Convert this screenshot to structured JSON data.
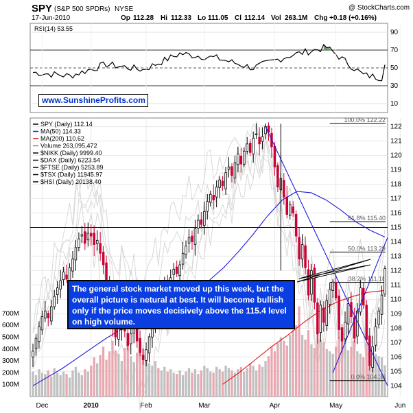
{
  "header": {
    "symbol": "SPY",
    "name": "(S&P 500 SPDRs)",
    "exchange": "NYSE",
    "watermark": "@ StockCharts.com",
    "date": "17-Jun-2010",
    "op_label": "Op",
    "op": "112.28",
    "hi_label": "Hi",
    "hi": "112.33",
    "lo_label": "Lo",
    "lo": "111.05",
    "cl_label": "Cl",
    "cl": "112.14",
    "vol_label": "Vol",
    "vol": "263.1M",
    "chg_label": "Chg",
    "chg": "+0.18 (+0.16%)"
  },
  "overlays": {
    "url_text": "www.SunshineProfits.com",
    "comment": "The general stock market moved up this week, but the overall picture is netural at best. It will become bullish only if the price moves decisively above the 115.4 level on high volume."
  },
  "legend": [
    {
      "text": "SPY (Daily) 112.14",
      "color": "#000000"
    },
    {
      "text": "MA(50) 114.33",
      "color": "#1a1adc"
    },
    {
      "text": "MA(200) 110.62",
      "color": "#e01010"
    },
    {
      "text": "Volume 263,095,472",
      "color": "#888888"
    },
    {
      "text": "$NIKK (Daily) 9999.40",
      "color": "#000000"
    },
    {
      "text": "$DAX (Daily) 6223.54",
      "color": "#000000"
    },
    {
      "text": "$FTSE (Daily) 5253.89",
      "color": "#000000"
    },
    {
      "text": "$TSX (Daily) 11945.97",
      "color": "#000000"
    },
    {
      "text": "$HSI (Daily) 20138.40",
      "color": "#000000"
    }
  ],
  "fib_labels": [
    {
      "text": "100.0% 122.22",
      "value": 122.22
    },
    {
      "text": "61.8% 115.40",
      "value": 115.4
    },
    {
      "text": "50.0% 113.29",
      "value": 113.29
    },
    {
      "text": "38.2% 111.18",
      "value": 111.18
    },
    {
      "text": "0.0% 104.36",
      "value": 104.36
    }
  ],
  "colors": {
    "up": "#000000",
    "down": "#cc0033",
    "ma50": "#1a1adc",
    "ma200": "#e01010",
    "trend": "#1a1adc",
    "rsi_fill": "#5a8a5a",
    "vol_up": "#c0c0c0",
    "vol_down": "#e8a8b0"
  },
  "chart_data": [
    {
      "type": "line",
      "title": "RSI(14) 53.55",
      "current_value": 53.55,
      "ylim": [
        0,
        100
      ],
      "yticks": [
        10,
        30,
        50,
        70,
        90
      ],
      "reference_lines": [
        30,
        50,
        70
      ],
      "x": [
        0,
        12,
        24,
        36,
        48,
        60,
        72,
        84,
        96,
        108,
        120,
        126
      ],
      "values": [
        45,
        41,
        54,
        48,
        66,
        61,
        50,
        64,
        73,
        42,
        36,
        53.55
      ]
    },
    {
      "type": "candlestick",
      "series_name": "SPY (Daily)",
      "ylim": [
        104,
        122.5
      ],
      "yticks": [
        104,
        105,
        106,
        107,
        108,
        109,
        110,
        111,
        112,
        113,
        114,
        115,
        116,
        117,
        118,
        119,
        120,
        121,
        122
      ],
      "xticks": [
        {
          "label": "Dec",
          "bar": 3
        },
        {
          "label": "2010",
          "bar": 19
        },
        {
          "label": "Feb",
          "bar": 37
        },
        {
          "label": "Mar",
          "bar": 56
        },
        {
          "label": "Apr",
          "bar": 79
        },
        {
          "label": "May",
          "bar": 99
        },
        {
          "label": "Jun",
          "bar": 120
        }
      ],
      "closes": [
        106.4,
        107.3,
        108.1,
        108.8,
        109.2,
        108.7,
        109.5,
        110.2,
        110.8,
        111.3,
        111.9,
        111.4,
        112.2,
        112.8,
        113.6,
        114.2,
        114.5,
        113.9,
        114.6,
        114.4,
        113.8,
        114.1,
        113.2,
        112.4,
        110.8,
        109.6,
        108.2,
        107.4,
        108.0,
        109.5,
        107.8,
        106.8,
        107.6,
        108.3,
        107.1,
        106.3,
        105.8,
        106.5,
        107.4,
        108.2,
        109.1,
        108.6,
        110.4,
        111.2,
        110.7,
        111.5,
        112.1,
        111.8,
        112.4,
        113.2,
        113.7,
        114.3,
        114.0,
        114.9,
        115.5,
        115.2,
        116.1,
        116.8,
        117.3,
        116.9,
        117.8,
        118.3,
        117.9,
        118.8,
        119.2,
        118.6,
        119.5,
        120.1,
        119.4,
        120.3,
        120.8,
        120.2,
        121.2,
        121.5,
        120.8,
        121.3,
        122.0,
        121.6,
        120.6,
        119.2,
        117.8,
        118.4,
        117.1,
        115.9,
        116.6,
        116.0,
        114.4,
        112.8,
        113.8,
        112.2,
        110.3,
        112.0,
        109.8,
        107.6,
        109.6,
        108.4,
        109.9,
        110.7,
        111.2,
        110.1,
        107.9,
        107.1,
        108.4,
        109.7,
        108.8,
        107.3,
        109.2,
        110.8,
        109.6,
        107.2,
        105.4,
        106.7,
        108.1,
        109.2,
        110.3,
        112.14
      ],
      "ma50": [
        104.0,
        104.6,
        105.2,
        105.9,
        106.6,
        107.3,
        107.9,
        108.5,
        109.0,
        109.5,
        110.0,
        110.6,
        111.3,
        112.2,
        113.3,
        114.5,
        115.8,
        116.9,
        117.5,
        117.4,
        116.9,
        116.2,
        115.4,
        114.8,
        114.33
      ],
      "ma200": [
        104.1,
        104.9,
        105.8,
        106.7,
        107.5,
        108.4,
        109.2,
        109.8,
        110.2,
        110.5,
        110.62
      ],
      "fib_levels": [
        {
          "label": "100.0%",
          "value": 122.22
        },
        {
          "label": "61.8%",
          "value": 115.4
        },
        {
          "label": "50.0%",
          "value": 113.29
        },
        {
          "label": "38.2%",
          "value": 111.18
        },
        {
          "label": "0.0%",
          "value": 104.36
        }
      ],
      "horizontal_line": 115.0
    },
    {
      "type": "bar",
      "title": "Volume",
      "current_value": 263095472,
      "units": "M",
      "yticks": [
        {
          "label": "100M",
          "value": 100
        },
        {
          "label": "200M",
          "value": 200
        },
        {
          "label": "300M",
          "value": 300
        },
        {
          "label": "400M",
          "value": 400
        },
        {
          "label": "500M",
          "value": 500
        },
        {
          "label": "600M",
          "value": 600
        },
        {
          "label": "700M",
          "value": 700
        }
      ],
      "values": [
        210,
        180,
        230,
        200,
        190,
        220,
        170,
        240,
        200,
        180,
        210,
        190,
        160,
        220,
        250,
        200,
        180,
        230,
        210,
        260,
        330,
        280,
        350,
        420,
        310,
        380,
        470,
        390,
        360,
        300,
        410,
        450,
        340,
        290,
        370,
        430,
        400,
        320,
        280,
        260,
        300,
        240,
        220,
        250,
        210,
        230,
        200,
        190,
        220,
        180,
        210,
        240,
        200,
        230,
        190,
        220,
        260,
        240,
        210,
        200,
        250,
        230,
        210,
        260,
        240,
        220,
        200,
        230,
        250,
        210,
        240,
        280,
        260,
        220,
        270,
        250,
        300,
        340,
        420,
        380,
        450,
        500,
        470,
        430,
        520,
        560,
        600,
        760,
        520,
        480,
        560,
        440,
        410,
        600,
        480,
        460,
        400,
        380,
        360,
        420,
        500,
        540,
        460,
        390,
        420,
        470,
        380,
        360,
        330,
        450,
        520,
        400,
        360,
        340,
        330,
        263
      ]
    }
  ]
}
